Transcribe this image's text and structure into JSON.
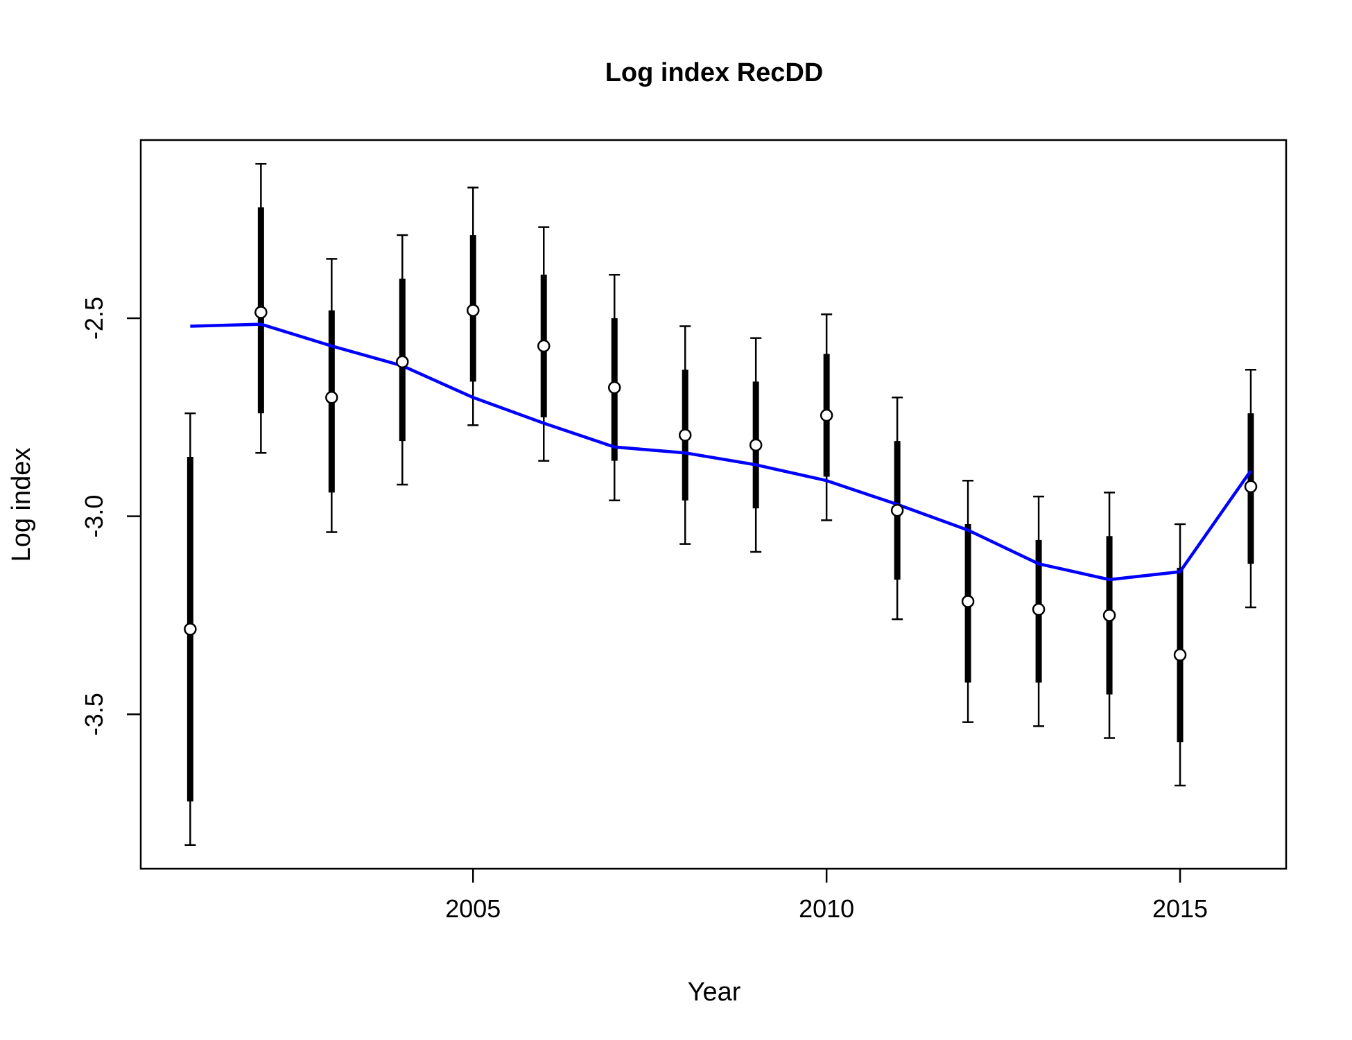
{
  "chart_data": {
    "type": "line",
    "title": "Log index RecDD",
    "xlabel": "Year",
    "ylabel": "Log index",
    "xlim": [
      2000.3,
      2016.5
    ],
    "ylim": [
      -3.89,
      -2.05
    ],
    "x_ticks": [
      2005,
      2010,
      2015
    ],
    "y_ticks": [
      -2.5,
      -3.0,
      -3.5
    ],
    "x_tick_labels": [
      "2005",
      "2010",
      "2015"
    ],
    "y_tick_labels": [
      "-2.5",
      "-3.0",
      "-3.5"
    ],
    "grid": false,
    "legend": "none",
    "colors": {
      "fit_line": "#0000ff",
      "error_bars": "#000000",
      "points_fill": "#ffffff",
      "points_stroke": "#000000"
    },
    "observations": [
      {
        "year": 2001,
        "value": -3.285,
        "ci_inner": [
          -3.72,
          -2.85
        ],
        "ci_outer": [
          -3.83,
          -2.74
        ]
      },
      {
        "year": 2002,
        "value": -2.485,
        "ci_inner": [
          -2.74,
          -2.22
        ],
        "ci_outer": [
          -2.84,
          -2.11
        ]
      },
      {
        "year": 2003,
        "value": -2.7,
        "ci_inner": [
          -2.94,
          -2.48
        ],
        "ci_outer": [
          -3.04,
          -2.35
        ]
      },
      {
        "year": 2004,
        "value": -2.61,
        "ci_inner": [
          -2.81,
          -2.4
        ],
        "ci_outer": [
          -2.92,
          -2.29
        ]
      },
      {
        "year": 2005,
        "value": -2.48,
        "ci_inner": [
          -2.66,
          -2.29
        ],
        "ci_outer": [
          -2.77,
          -2.17
        ]
      },
      {
        "year": 2006,
        "value": -2.57,
        "ci_inner": [
          -2.75,
          -2.39
        ],
        "ci_outer": [
          -2.86,
          -2.27
        ]
      },
      {
        "year": 2007,
        "value": -2.675,
        "ci_inner": [
          -2.86,
          -2.5
        ],
        "ci_outer": [
          -2.96,
          -2.39
        ]
      },
      {
        "year": 2008,
        "value": -2.795,
        "ci_inner": [
          -2.96,
          -2.63
        ],
        "ci_outer": [
          -3.07,
          -2.52
        ]
      },
      {
        "year": 2009,
        "value": -2.82,
        "ci_inner": [
          -2.98,
          -2.66
        ],
        "ci_outer": [
          -3.09,
          -2.55
        ]
      },
      {
        "year": 2010,
        "value": -2.745,
        "ci_inner": [
          -2.9,
          -2.59
        ],
        "ci_outer": [
          -3.01,
          -2.49
        ]
      },
      {
        "year": 2011,
        "value": -2.985,
        "ci_inner": [
          -3.16,
          -2.81
        ],
        "ci_outer": [
          -3.26,
          -2.7
        ]
      },
      {
        "year": 2012,
        "value": -3.215,
        "ci_inner": [
          -3.42,
          -3.02
        ],
        "ci_outer": [
          -3.52,
          -2.91
        ]
      },
      {
        "year": 2013,
        "value": -3.235,
        "ci_inner": [
          -3.42,
          -3.06
        ],
        "ci_outer": [
          -3.53,
          -2.95
        ]
      },
      {
        "year": 2014,
        "value": -3.25,
        "ci_inner": [
          -3.45,
          -3.05
        ],
        "ci_outer": [
          -3.56,
          -2.94
        ]
      },
      {
        "year": 2015,
        "value": -3.35,
        "ci_inner": [
          -3.57,
          -3.13
        ],
        "ci_outer": [
          -3.68,
          -3.02
        ]
      },
      {
        "year": 2016,
        "value": -2.925,
        "ci_inner": [
          -3.12,
          -2.74
        ],
        "ci_outer": [
          -3.23,
          -2.63
        ]
      }
    ],
    "series": [
      {
        "x": [
          2001,
          2002,
          2003,
          2004,
          2005,
          2006,
          2007,
          2008,
          2009,
          2010,
          2011,
          2012,
          2013,
          2014,
          2015,
          2016
        ],
        "values": [
          -2.52,
          -2.515,
          -2.57,
          -2.62,
          -2.7,
          -2.765,
          -2.825,
          -2.84,
          -2.87,
          -2.91,
          -2.97,
          -3.035,
          -3.12,
          -3.16,
          -3.14,
          -2.885
        ]
      }
    ]
  }
}
